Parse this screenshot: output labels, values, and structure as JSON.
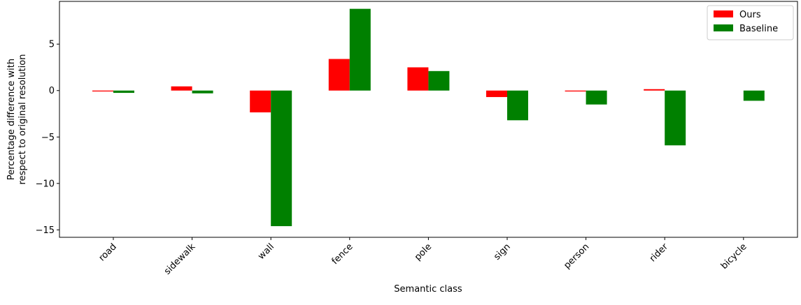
{
  "chart_data": {
    "type": "bar",
    "categories": [
      "road",
      "sidewalk",
      "wall",
      "fence",
      "pole",
      "sign",
      "person",
      "rider",
      "bicycle"
    ],
    "series": [
      {
        "name": "Ours",
        "color": "#ff0000",
        "values": [
          -0.1,
          0.45,
          -2.35,
          3.4,
          2.5,
          -0.7,
          -0.1,
          0.15,
          0.0
        ]
      },
      {
        "name": "Baseline",
        "color": "#008000",
        "values": [
          -0.25,
          -0.3,
          -14.6,
          8.8,
          2.1,
          -3.2,
          -1.5,
          -5.9,
          -1.1
        ]
      }
    ],
    "xlabel": "Semantic class",
    "ylabel_lines": [
      "Percentage difference with",
      "respect to original resolution"
    ],
    "ylim": [
      -15.8,
      9.6
    ],
    "yticks": [
      5,
      0,
      -5,
      -10,
      -15
    ],
    "ytick_labels": [
      "5",
      "0",
      "−5",
      "−10",
      "−15"
    ],
    "legend_position": "top-right",
    "grid": false
  }
}
